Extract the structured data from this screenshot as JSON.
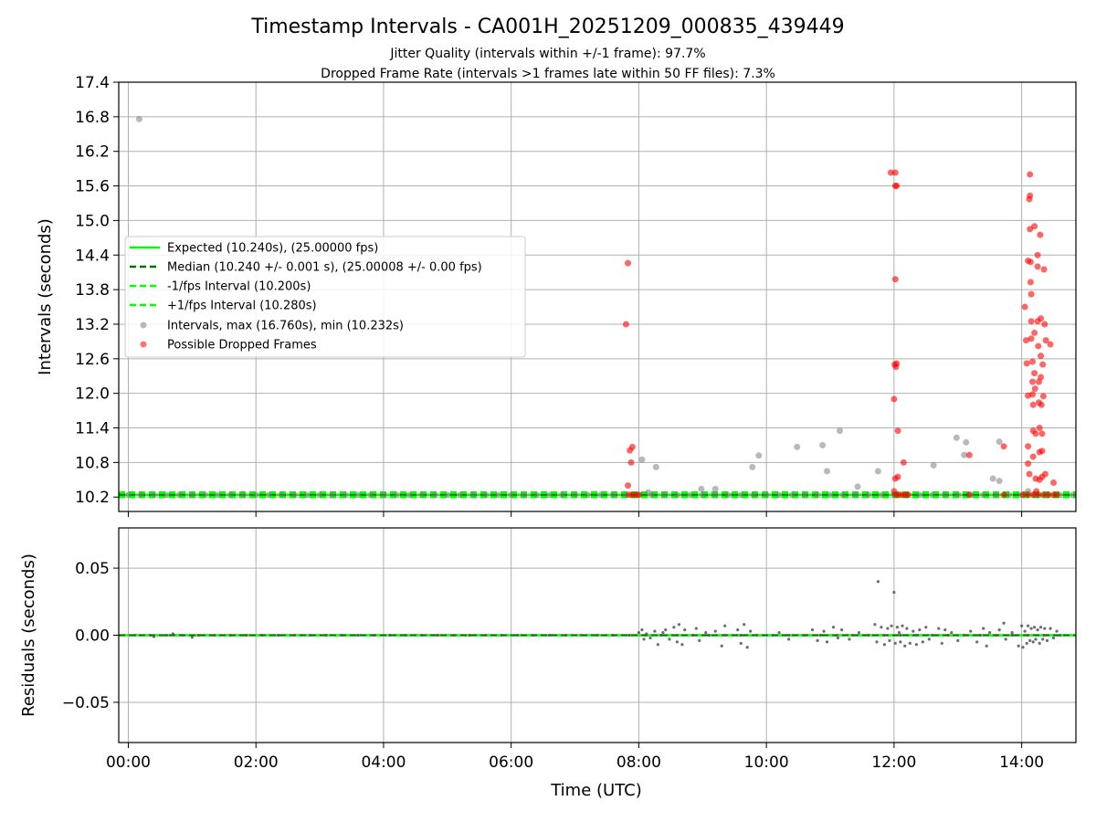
{
  "chart_data": {
    "title": "Timestamp Intervals - CA001H_20251209_000835_439449",
    "subtitles": [
      "Jitter Quality (intervals within +/-1 frame): 97.7%",
      "Dropped Frame Rate (intervals >1 frames late within 50 FF files): 7.3%"
    ],
    "colors": {
      "expected": "#00ff00",
      "median": "#007700",
      "normal_points": "#808080",
      "dropped_points": "#ff0000",
      "grid": "#b0b0b0"
    },
    "x_axis": {
      "label": "Time (UTC)",
      "range_hours": [
        -0.15,
        14.85
      ],
      "ticks": [
        {
          "v": 0,
          "label": "00:00"
        },
        {
          "v": 2,
          "label": "02:00"
        },
        {
          "v": 4,
          "label": "04:00"
        },
        {
          "v": 6,
          "label": "06:00"
        },
        {
          "v": 8,
          "label": "08:00"
        },
        {
          "v": 10,
          "label": "10:00"
        },
        {
          "v": 12,
          "label": "12:00"
        },
        {
          "v": 14,
          "label": "14:00"
        }
      ]
    },
    "top_panel": {
      "type": "scatter",
      "ylabel": "Intervals (seconds)",
      "ylim": [
        9.95,
        17.4
      ],
      "yticks": [
        {
          "v": 10.2,
          "label": "10.2"
        },
        {
          "v": 10.8,
          "label": "10.8"
        },
        {
          "v": 11.4,
          "label": "11.4"
        },
        {
          "v": 12.0,
          "label": "12.0"
        },
        {
          "v": 12.6,
          "label": "12.6"
        },
        {
          "v": 13.2,
          "label": "13.2"
        },
        {
          "v": 13.8,
          "label": "13.8"
        },
        {
          "v": 14.4,
          "label": "14.4"
        },
        {
          "v": 15.0,
          "label": "15.0"
        },
        {
          "v": 15.6,
          "label": "15.6"
        },
        {
          "v": 16.2,
          "label": "16.2"
        },
        {
          "v": 16.8,
          "label": "16.8"
        },
        {
          "v": 17.4,
          "label": "17.4"
        }
      ],
      "lines": {
        "expected": 10.24,
        "median": 10.24,
        "minus_fps": 10.2,
        "plus_fps": 10.28
      },
      "legend": {
        "placement": "center-left",
        "entries": [
          {
            "kind": "line-solid-bright",
            "label": "Expected (10.240s), (25.00000 fps)"
          },
          {
            "kind": "line-dash-dark",
            "label": "Median (10.240 +/- 0.001 s), (25.00008 +/- 0.00 fps)"
          },
          {
            "kind": "line-dash-bright",
            "label": "-1/fps Interval (10.200s)"
          },
          {
            "kind": "line-dash-bright",
            "label": "+1/fps Interval (10.280s)"
          },
          {
            "kind": "marker-grey",
            "label": "Intervals, max (16.760s), min (10.232s)"
          },
          {
            "kind": "marker-red",
            "label": "Possible Dropped Frames"
          }
        ]
      },
      "baseline_x_range": [
        0.0,
        14.8
      ],
      "normal_points": [
        [
          0.17,
          16.76
        ],
        [
          8.05,
          10.85
        ],
        [
          8.15,
          10.28
        ],
        [
          8.27,
          10.72
        ],
        [
          8.98,
          10.34
        ],
        [
          9.2,
          10.34
        ],
        [
          9.78,
          10.72
        ],
        [
          9.88,
          10.92
        ],
        [
          10.48,
          11.07
        ],
        [
          10.88,
          11.1
        ],
        [
          10.95,
          10.65
        ],
        [
          11.15,
          11.35
        ],
        [
          11.43,
          10.38
        ],
        [
          11.75,
          10.65
        ],
        [
          12.62,
          10.75
        ],
        [
          12.98,
          11.23
        ],
        [
          13.1,
          10.93
        ],
        [
          13.13,
          11.15
        ],
        [
          13.55,
          10.52
        ],
        [
          13.65,
          10.48
        ],
        [
          13.65,
          11.16
        ],
        [
          14.1,
          10.3
        ]
      ],
      "dropped_points": [
        [
          7.8,
          13.2
        ],
        [
          7.83,
          14.26
        ],
        [
          7.83,
          10.4
        ],
        [
          7.86,
          11.01
        ],
        [
          7.88,
          10.8
        ],
        [
          7.9,
          11.07
        ],
        [
          7.85,
          10.24
        ],
        [
          7.9,
          10.24
        ],
        [
          7.95,
          10.24
        ],
        [
          8.0,
          10.24
        ],
        [
          11.95,
          15.83
        ],
        [
          12.02,
          15.83
        ],
        [
          12.02,
          15.6
        ],
        [
          12.04,
          15.6
        ],
        [
          12.02,
          13.98
        ],
        [
          12.01,
          12.5
        ],
        [
          12.04,
          12.52
        ],
        [
          12.03,
          12.46
        ],
        [
          12.0,
          11.9
        ],
        [
          12.06,
          11.35
        ],
        [
          12.02,
          10.52
        ],
        [
          12.06,
          10.55
        ],
        [
          12.15,
          10.8
        ],
        [
          12.0,
          10.3
        ],
        [
          12.03,
          10.24
        ],
        [
          12.08,
          10.24
        ],
        [
          12.12,
          10.24
        ],
        [
          12.18,
          10.24
        ],
        [
          12.22,
          10.24
        ],
        [
          13.18,
          10.93
        ],
        [
          13.18,
          10.24
        ],
        [
          13.72,
          11.08
        ],
        [
          13.72,
          10.24
        ],
        [
          14.05,
          13.5
        ],
        [
          14.07,
          12.92
        ],
        [
          14.08,
          12.52
        ],
        [
          14.1,
          11.96
        ],
        [
          14.1,
          11.08
        ],
        [
          14.12,
          10.6
        ],
        [
          14.1,
          10.78
        ],
        [
          14.1,
          14.3
        ],
        [
          14.12,
          15.37
        ],
        [
          14.13,
          15.8
        ],
        [
          14.13,
          15.43
        ],
        [
          14.13,
          14.85
        ],
        [
          14.14,
          14.28
        ],
        [
          14.14,
          13.93
        ],
        [
          14.15,
          13.72
        ],
        [
          14.15,
          13.25
        ],
        [
          14.15,
          12.95
        ],
        [
          14.17,
          12.55
        ],
        [
          14.17,
          12.2
        ],
        [
          14.17,
          11.98
        ],
        [
          14.18,
          11.8
        ],
        [
          14.18,
          11.35
        ],
        [
          14.18,
          10.9
        ],
        [
          14.2,
          14.9
        ],
        [
          14.2,
          13.05
        ],
        [
          14.2,
          12.35
        ],
        [
          14.21,
          12.08
        ],
        [
          14.22,
          11.3
        ],
        [
          14.22,
          10.52
        ],
        [
          14.23,
          10.3
        ],
        [
          14.25,
          14.4
        ],
        [
          14.25,
          14.2
        ],
        [
          14.25,
          13.25
        ],
        [
          14.26,
          12.82
        ],
        [
          14.27,
          12.2
        ],
        [
          14.27,
          11.84
        ],
        [
          14.28,
          11.4
        ],
        [
          14.28,
          10.98
        ],
        [
          14.28,
          10.5
        ],
        [
          14.29,
          14.75
        ],
        [
          14.3,
          13.3
        ],
        [
          14.3,
          12.65
        ],
        [
          14.3,
          12.28
        ],
        [
          14.31,
          11.8
        ],
        [
          14.32,
          11.3
        ],
        [
          14.32,
          11.0
        ],
        [
          14.32,
          10.55
        ],
        [
          14.33,
          12.5
        ],
        [
          14.34,
          11.95
        ],
        [
          14.35,
          14.15
        ],
        [
          14.36,
          13.2
        ],
        [
          14.37,
          10.6
        ],
        [
          14.38,
          12.92
        ],
        [
          14.45,
          12.85
        ],
        [
          14.5,
          10.45
        ],
        [
          14.02,
          10.24
        ],
        [
          14.1,
          10.24
        ],
        [
          14.18,
          10.24
        ],
        [
          14.26,
          10.24
        ],
        [
          14.34,
          10.24
        ],
        [
          14.42,
          10.24
        ],
        [
          14.5,
          10.24
        ],
        [
          14.55,
          10.24
        ]
      ]
    },
    "bottom_panel": {
      "type": "scatter",
      "ylabel": "Residuals (seconds)",
      "ylim": [
        -0.08,
        0.08
      ],
      "yticks": [
        {
          "v": 0.05,
          "label": "0.05"
        },
        {
          "v": 0.0,
          "label": "0.00"
        },
        {
          "v": -0.05,
          "label": "−0.05"
        }
      ],
      "zero_line": 0.0,
      "points": [
        [
          8.0,
          0.002
        ],
        [
          8.05,
          0.004
        ],
        [
          8.08,
          -0.003
        ],
        [
          8.12,
          0.001
        ],
        [
          8.18,
          -0.002
        ],
        [
          8.25,
          0.003
        ],
        [
          8.3,
          -0.007
        ],
        [
          8.38,
          0.002
        ],
        [
          8.42,
          0.004
        ],
        [
          8.48,
          -0.003
        ],
        [
          8.55,
          0.006
        ],
        [
          8.6,
          -0.005
        ],
        [
          8.63,
          0.008
        ],
        [
          8.68,
          -0.007
        ],
        [
          8.72,
          0.004
        ],
        [
          8.9,
          0.005
        ],
        [
          8.95,
          -0.004
        ],
        [
          9.05,
          0.002
        ],
        [
          9.2,
          0.003
        ],
        [
          9.3,
          -0.008
        ],
        [
          9.35,
          0.007
        ],
        [
          9.55,
          0.004
        ],
        [
          9.6,
          -0.006
        ],
        [
          9.65,
          0.008
        ],
        [
          9.7,
          -0.009
        ],
        [
          9.75,
          0.003
        ],
        [
          10.2,
          0.002
        ],
        [
          10.35,
          -0.003
        ],
        [
          10.72,
          0.004
        ],
        [
          10.8,
          -0.004
        ],
        [
          10.9,
          0.003
        ],
        [
          10.95,
          -0.005
        ],
        [
          11.05,
          0.006
        ],
        [
          11.12,
          -0.002
        ],
        [
          11.18,
          0.004
        ],
        [
          11.3,
          -0.003
        ],
        [
          11.45,
          0.002
        ],
        [
          11.7,
          0.008
        ],
        [
          11.73,
          -0.005
        ],
        [
          11.75,
          0.04
        ],
        [
          11.8,
          0.006
        ],
        [
          11.85,
          -0.007
        ],
        [
          11.9,
          0.005
        ],
        [
          11.93,
          -0.004
        ],
        [
          11.96,
          0.007
        ],
        [
          12.0,
          0.032
        ],
        [
          12.02,
          -0.006
        ],
        [
          12.05,
          0.006
        ],
        [
          12.08,
          0.002
        ],
        [
          12.1,
          -0.005
        ],
        [
          12.13,
          0.007
        ],
        [
          12.17,
          -0.008
        ],
        [
          12.2,
          0.005
        ],
        [
          12.25,
          -0.006
        ],
        [
          12.3,
          0.003
        ],
        [
          12.35,
          -0.007
        ],
        [
          12.4,
          0.004
        ],
        [
          12.45,
          -0.005
        ],
        [
          12.5,
          0.006
        ],
        [
          12.55,
          -0.003
        ],
        [
          12.7,
          0.005
        ],
        [
          12.75,
          -0.006
        ],
        [
          12.8,
          0.004
        ],
        [
          12.9,
          0.002
        ],
        [
          13.0,
          -0.004
        ],
        [
          13.2,
          0.003
        ],
        [
          13.3,
          -0.005
        ],
        [
          13.4,
          0.005
        ],
        [
          13.45,
          -0.008
        ],
        [
          13.5,
          0.002
        ],
        [
          13.65,
          0.004
        ],
        [
          13.72,
          0.009
        ],
        [
          13.75,
          -0.003
        ],
        [
          13.85,
          0.002
        ],
        [
          13.95,
          -0.008
        ],
        [
          14.0,
          0.007
        ],
        [
          14.02,
          -0.009
        ],
        [
          14.05,
          0.003
        ],
        [
          14.08,
          -0.006
        ],
        [
          14.1,
          0.007
        ],
        [
          14.13,
          -0.004
        ],
        [
          14.15,
          0.005
        ],
        [
          14.18,
          -0.005
        ],
        [
          14.2,
          0.006
        ],
        [
          14.22,
          -0.003
        ],
        [
          14.25,
          0.004
        ],
        [
          14.28,
          -0.006
        ],
        [
          14.3,
          0.006
        ],
        [
          14.33,
          -0.003
        ],
        [
          14.36,
          0.005
        ],
        [
          14.4,
          -0.004
        ],
        [
          14.45,
          0.005
        ],
        [
          14.5,
          -0.002
        ],
        [
          14.55,
          0.003
        ],
        [
          0.4,
          -0.001
        ],
        [
          0.7,
          0.001
        ],
        [
          1.0,
          -0.0015
        ]
      ]
    }
  }
}
